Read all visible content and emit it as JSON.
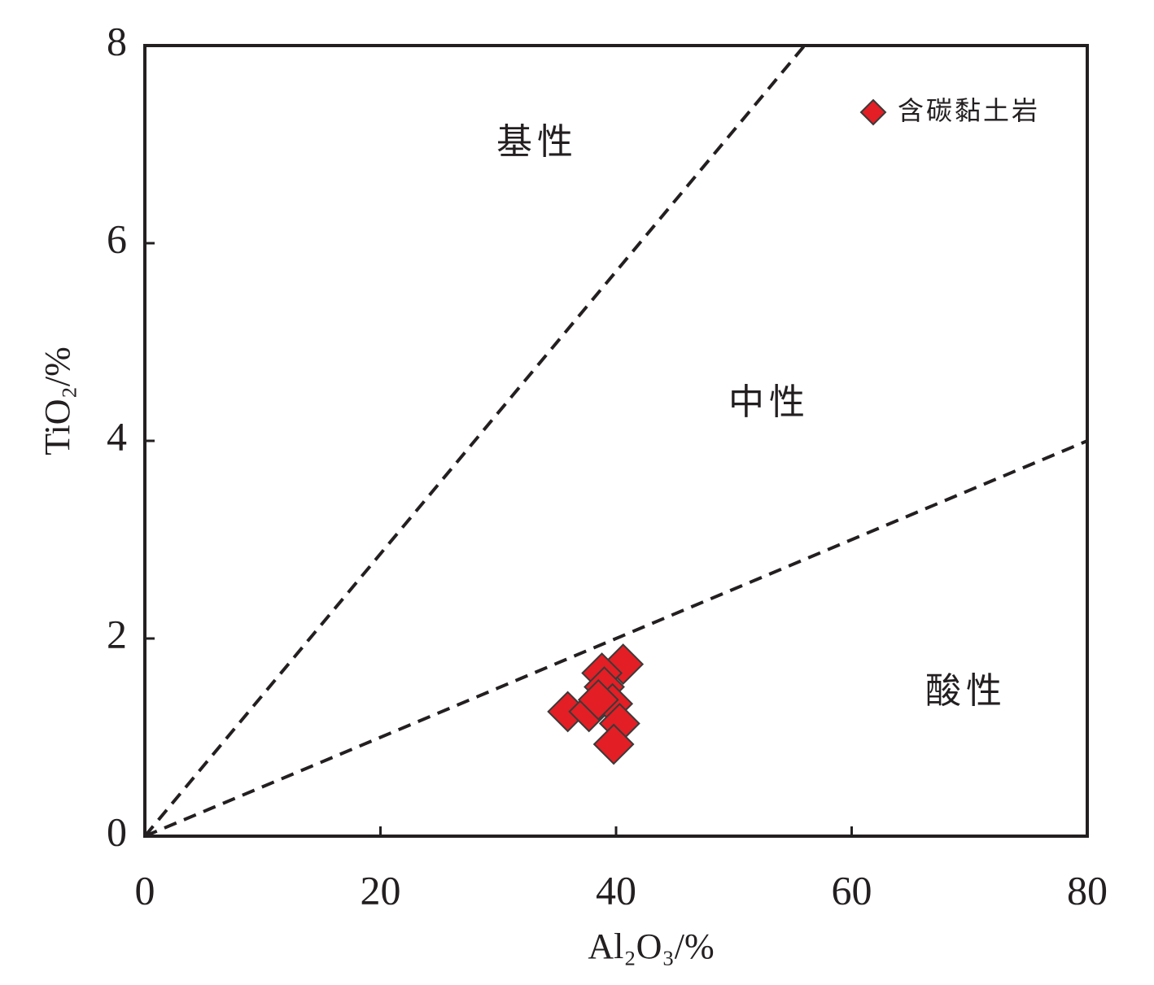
{
  "chart_data": {
    "type": "scatter",
    "x_label": "Al₂O₃/%",
    "y_label": "TiO₂/%",
    "xlim": [
      0,
      80
    ],
    "ylim": [
      0,
      8
    ],
    "xticks": [
      0,
      20,
      40,
      60,
      80
    ],
    "yticks": [
      0,
      2,
      4,
      6,
      8
    ],
    "series": [
      {
        "name": "含碳黏土岩",
        "color": "#e31e24",
        "x": [
          35.9,
          40.6,
          38.8,
          39.0,
          37.7,
          39.7,
          40.3,
          39.8,
          38.5
        ],
        "values": [
          1.26,
          1.74,
          1.65,
          1.51,
          1.26,
          1.34,
          1.14,
          0.93,
          1.38
        ]
      }
    ],
    "reference_lines": [
      {
        "x": [
          0,
          56
        ],
        "values": [
          0,
          8
        ]
      },
      {
        "x": [
          0,
          80
        ],
        "values": [
          0,
          4
        ]
      }
    ],
    "annotations": [
      "基性",
      "中性",
      "酸性"
    ],
    "legend_position": "upper right"
  }
}
